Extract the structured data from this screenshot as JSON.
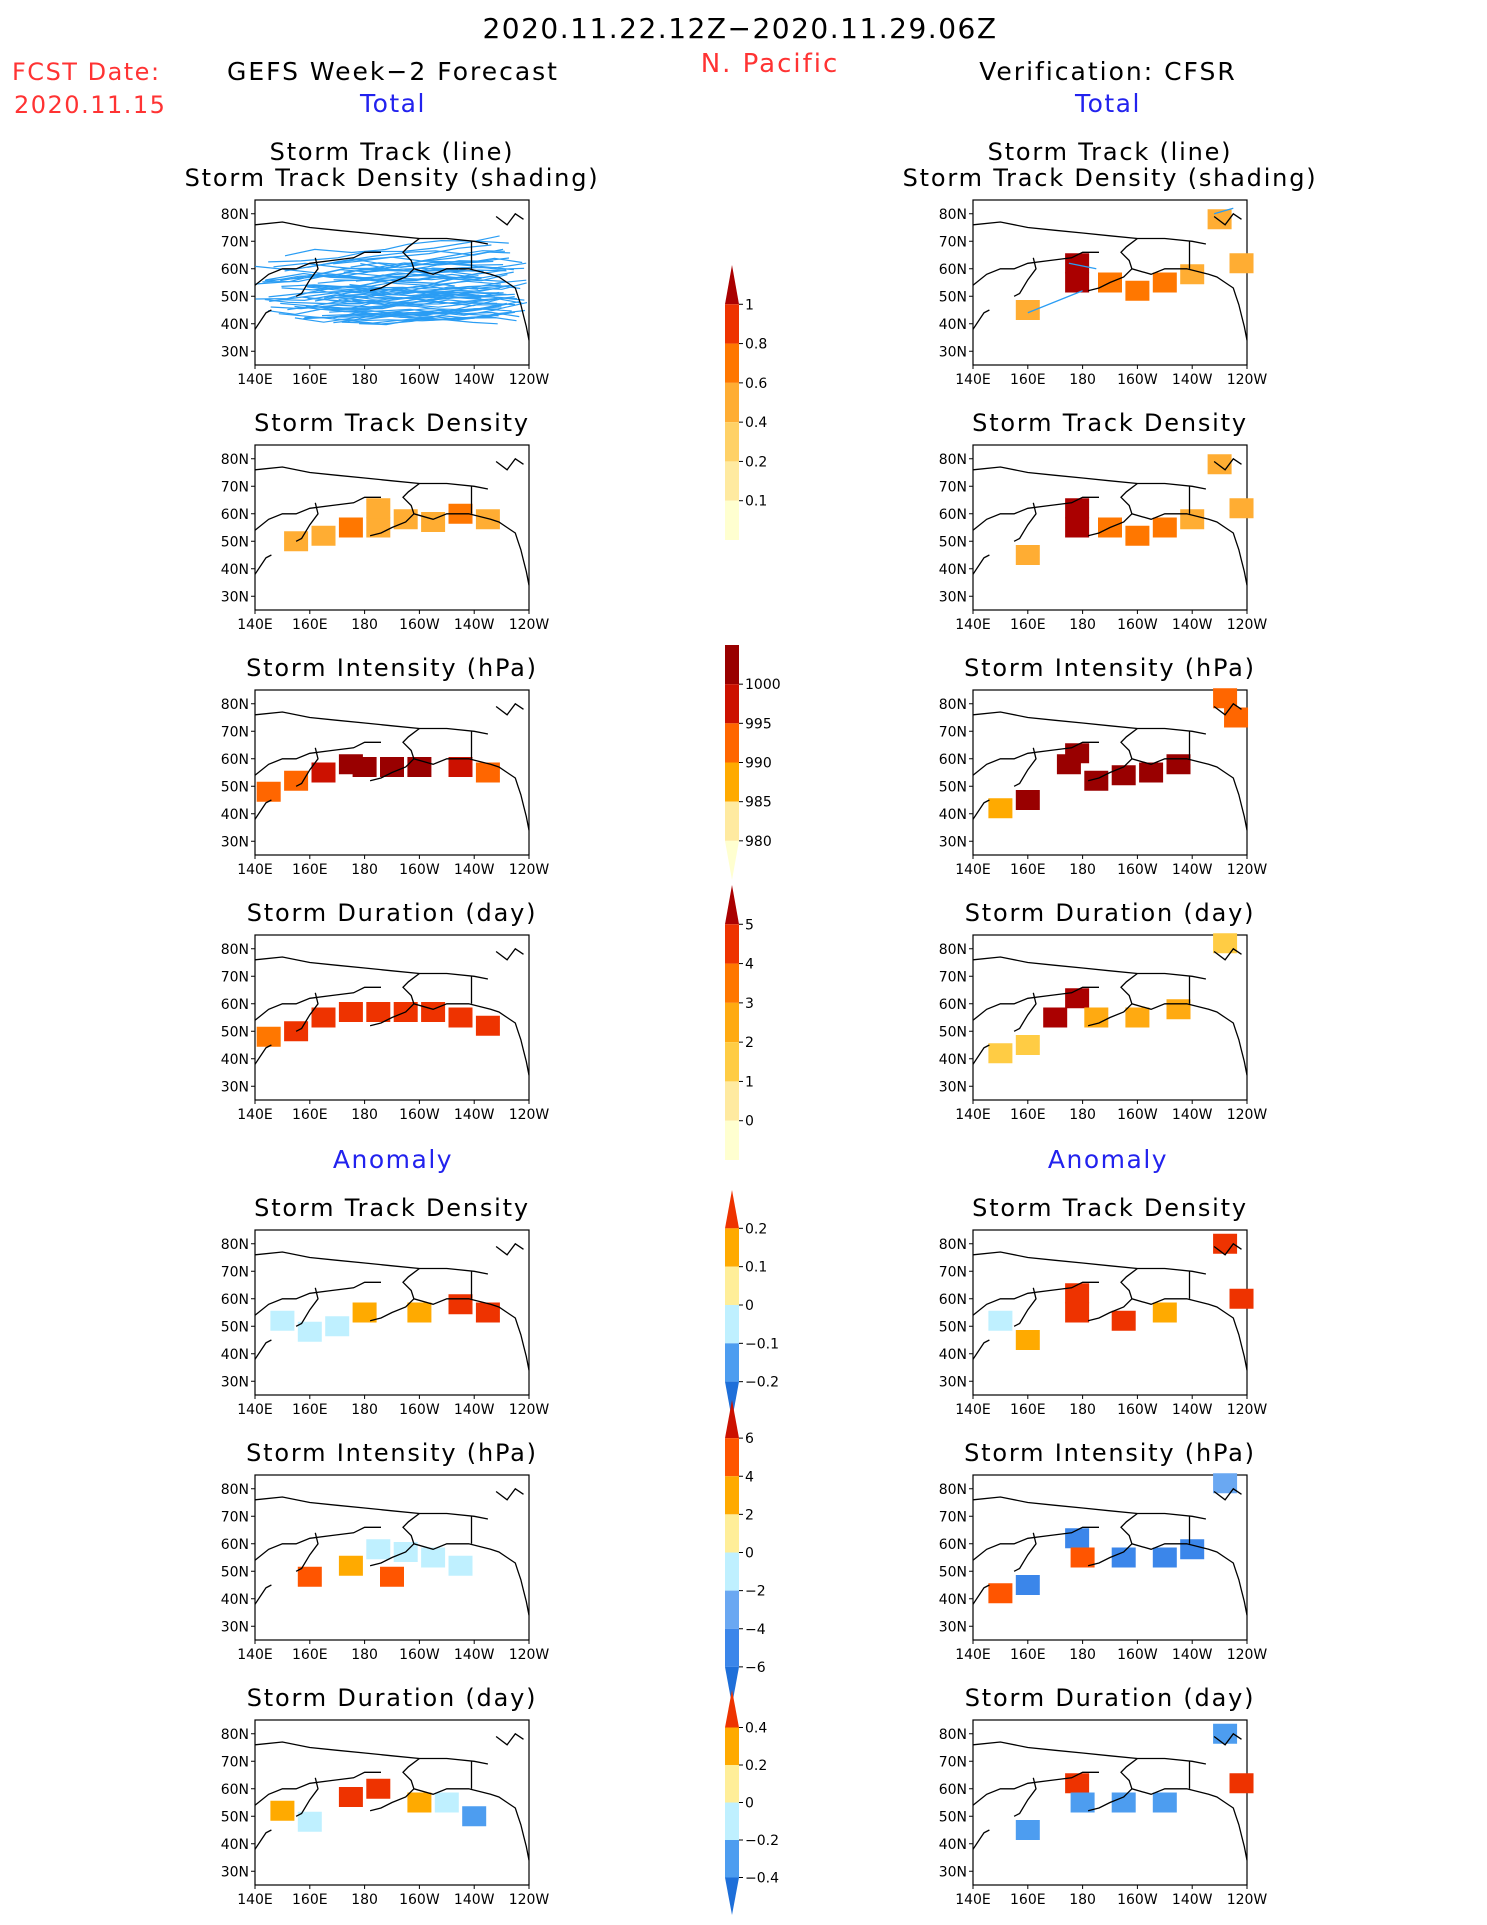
{
  "header": {
    "date_range": "2020.11.22.12Z−2020.11.29.06Z",
    "region": "N. Pacific",
    "fcst_label": "FCST Date:",
    "fcst_date": "2020.11.15",
    "left_title": "GEFS Week−2 Forecast",
    "right_title": "Verification: CFSR",
    "total_label": "Total",
    "anomaly_label": "Anomaly"
  },
  "colors": {
    "text_red": "#ff3333",
    "text_blue": "#2222ee",
    "track_line": "#2a9df4",
    "land_outline": "#000000"
  },
  "panels": {
    "titles": [
      [
        "Storm Track (line)",
        "Storm Track Density (shading)"
      ],
      [
        "Storm Track Density"
      ],
      [
        "Storm Intensity (hPa)"
      ],
      [
        "Storm Duration (day)"
      ],
      [
        "Storm Track Density"
      ],
      [
        "Storm Intensity (hPa)"
      ],
      [
        "Storm Duration (day)"
      ]
    ],
    "lat_ticks": [
      "80N",
      "70N",
      "60N",
      "50N",
      "40N",
      "30N"
    ],
    "lon_ticks": [
      "140E",
      "160E",
      "180",
      "160W",
      "140W",
      "120W"
    ]
  },
  "chart_data": {
    "type": "heatmap",
    "region": "N. Pacific",
    "period": "2020.11.22.12Z−2020.11.29.06Z",
    "fcst_date": "2020.11.15",
    "columns": [
      "GEFS Week−2 Forecast",
      "Verification: CFSR"
    ],
    "xlabel": "",
    "ylabel": "",
    "xrange": [
      140,
      240
    ],
    "yrange": [
      25,
      85
    ],
    "colorbars": [
      {
        "for": "Storm Track Density (Total)",
        "ticks": [
          "0.1",
          "0.2",
          "0.4",
          "0.6",
          "0.8",
          "1"
        ],
        "colors": [
          "#ffffd0",
          "#ffeaa0",
          "#ffd166",
          "#ffad33",
          "#ff7700",
          "#ee3300",
          "#aa0000"
        ]
      },
      {
        "for": "Storm Intensity (hPa) (Total)",
        "ticks": [
          "1000",
          "995",
          "990",
          "985",
          "980"
        ],
        "colors": [
          "#ffffd0",
          "#ffeaa0",
          "#ffaa00",
          "#ff6600",
          "#cc1100",
          "#990000"
        ]
      },
      {
        "for": "Storm Duration (day) (Total)",
        "ticks": [
          "0",
          "1",
          "2",
          "3",
          "4",
          "5"
        ],
        "colors": [
          "#ffffd0",
          "#ffeaa0",
          "#ffcc44",
          "#ffaa11",
          "#ff7700",
          "#ee3300",
          "#aa0000"
        ]
      },
      {
        "for": "Storm Track Density (Anomaly)",
        "ticks": [
          "−0.2",
          "−0.1",
          "0",
          "0.1",
          "0.2"
        ],
        "colors": [
          "#1e6fd9",
          "#4d9df0",
          "#bff0ff",
          "#ffee99",
          "#ffaa00",
          "#ee3300"
        ]
      },
      {
        "for": "Storm Intensity (hPa) (Anomaly)",
        "ticks": [
          "−6",
          "−4",
          "−2",
          "0",
          "2",
          "4",
          "6"
        ],
        "colors": [
          "#1e6fd9",
          "#3b86ea",
          "#6aa8f2",
          "#bff0ff",
          "#ffee99",
          "#ffaa00",
          "#ff5500",
          "#cc1100"
        ]
      },
      {
        "for": "Storm Duration (day) (Anomaly)",
        "ticks": [
          "−0.4",
          "−0.2",
          "0",
          "0.2",
          "0.4"
        ],
        "colors": [
          "#1e6fd9",
          "#4d9df0",
          "#bff0ff",
          "#ffee99",
          "#ffaa00",
          "#ee3300"
        ]
      }
    ],
    "grid_cells": [
      {
        "panel": "GEFS Storm Track Density",
        "cells": [
          [
            175,
            55,
            0.6
          ],
          [
            185,
            55,
            0.4
          ],
          [
            195,
            58,
            0.4
          ],
          [
            205,
            57,
            0.4
          ],
          [
            215,
            60,
            0.6
          ],
          [
            225,
            58,
            0.4
          ],
          [
            165,
            52,
            0.4
          ],
          [
            185,
            62,
            0.4
          ],
          [
            155,
            50,
            0.4
          ]
        ]
      },
      {
        "panel": "CFSR Storm Track Density",
        "cells": [
          [
            178,
            62,
            1.0
          ],
          [
            178,
            55,
            1.0
          ],
          [
            190,
            55,
            0.6
          ],
          [
            200,
            52,
            0.6
          ],
          [
            210,
            55,
            0.6
          ],
          [
            220,
            58,
            0.4
          ],
          [
            160,
            45,
            0.4
          ],
          [
            230,
            78,
            0.4
          ],
          [
            238,
            62,
            0.4
          ]
        ]
      },
      {
        "panel": "GEFS Storm Intensity",
        "cells": [
          [
            180,
            57,
            980
          ],
          [
            190,
            57,
            980
          ],
          [
            200,
            57,
            980
          ],
          [
            175,
            58,
            980
          ],
          [
            165,
            55,
            985
          ],
          [
            215,
            57,
            985
          ],
          [
            155,
            52,
            990
          ],
          [
            225,
            55,
            990
          ],
          [
            145,
            48,
            990
          ]
        ]
      },
      {
        "panel": "CFSR Storm Intensity",
        "cells": [
          [
            178,
            62,
            980
          ],
          [
            175,
            58,
            980
          ],
          [
            185,
            52,
            980
          ],
          [
            195,
            54,
            980
          ],
          [
            205,
            55,
            980
          ],
          [
            215,
            58,
            980
          ],
          [
            160,
            45,
            980
          ],
          [
            150,
            42,
            995
          ],
          [
            232,
            82,
            990
          ],
          [
            236,
            75,
            990
          ]
        ]
      },
      {
        "panel": "GEFS Storm Duration",
        "cells": [
          [
            175,
            57,
            4
          ],
          [
            185,
            57,
            4
          ],
          [
            195,
            57,
            4
          ],
          [
            205,
            57,
            4
          ],
          [
            215,
            55,
            4
          ],
          [
            165,
            55,
            4
          ],
          [
            155,
            50,
            4
          ],
          [
            225,
            52,
            4
          ],
          [
            145,
            48,
            3
          ]
        ]
      },
      {
        "panel": "CFSR Storm Duration",
        "cells": [
          [
            178,
            62,
            5
          ],
          [
            170,
            55,
            5
          ],
          [
            185,
            55,
            2
          ],
          [
            200,
            55,
            2
          ],
          [
            215,
            58,
            2
          ],
          [
            160,
            45,
            1
          ],
          [
            150,
            42,
            1
          ],
          [
            232,
            82,
            1
          ]
        ]
      },
      {
        "panel": "GEFS Storm Track Density Anomaly",
        "cells": [
          [
            180,
            55,
            0.1
          ],
          [
            200,
            55,
            0.1
          ],
          [
            215,
            58,
            0.2
          ],
          [
            225,
            55,
            0.2
          ],
          [
            160,
            48,
            -0.1
          ],
          [
            170,
            50,
            -0.1
          ],
          [
            150,
            52,
            -0.1
          ]
        ]
      },
      {
        "panel": "CFSR Storm Track Density Anomaly",
        "cells": [
          [
            178,
            62,
            0.2
          ],
          [
            178,
            55,
            0.2
          ],
          [
            195,
            52,
            0.2
          ],
          [
            210,
            55,
            0.1
          ],
          [
            160,
            45,
            0.1
          ],
          [
            232,
            80,
            0.2
          ],
          [
            238,
            60,
            0.2
          ],
          [
            150,
            52,
            -0.1
          ]
        ]
      },
      {
        "panel": "GEFS Storm Intensity Anomaly",
        "cells": [
          [
            185,
            58,
            -2
          ],
          [
            195,
            57,
            -2
          ],
          [
            205,
            55,
            -2
          ],
          [
            175,
            52,
            2
          ],
          [
            160,
            48,
            4
          ],
          [
            190,
            48,
            4
          ],
          [
            215,
            52,
            -2
          ]
        ]
      },
      {
        "panel": "CFSR Storm Intensity Anomaly",
        "cells": [
          [
            178,
            62,
            -6
          ],
          [
            180,
            55,
            4
          ],
          [
            195,
            55,
            -6
          ],
          [
            210,
            55,
            -6
          ],
          [
            220,
            58,
            -6
          ],
          [
            160,
            45,
            -6
          ],
          [
            150,
            42,
            4
          ],
          [
            232,
            82,
            -4
          ]
        ]
      },
      {
        "panel": "GEFS Storm Duration Anomaly",
        "cells": [
          [
            175,
            57,
            0.4
          ],
          [
            185,
            60,
            0.4
          ],
          [
            200,
            55,
            0.2
          ],
          [
            210,
            55,
            -0.2
          ],
          [
            160,
            48,
            -0.2
          ],
          [
            150,
            52,
            0.2
          ],
          [
            220,
            50,
            -0.4
          ]
        ]
      },
      {
        "panel": "CFSR Storm Duration Anomaly",
        "cells": [
          [
            178,
            62,
            0.4
          ],
          [
            180,
            55,
            -0.4
          ],
          [
            195,
            55,
            -0.4
          ],
          [
            210,
            55,
            -0.4
          ],
          [
            160,
            45,
            -0.4
          ],
          [
            232,
            80,
            -0.4
          ],
          [
            238,
            62,
            0.4
          ]
        ]
      }
    ],
    "track_lines": {
      "panel": "GEFS Storm Track (line)",
      "lon_range": [
        140,
        240
      ],
      "lat_range": [
        38,
        82
      ]
    }
  }
}
